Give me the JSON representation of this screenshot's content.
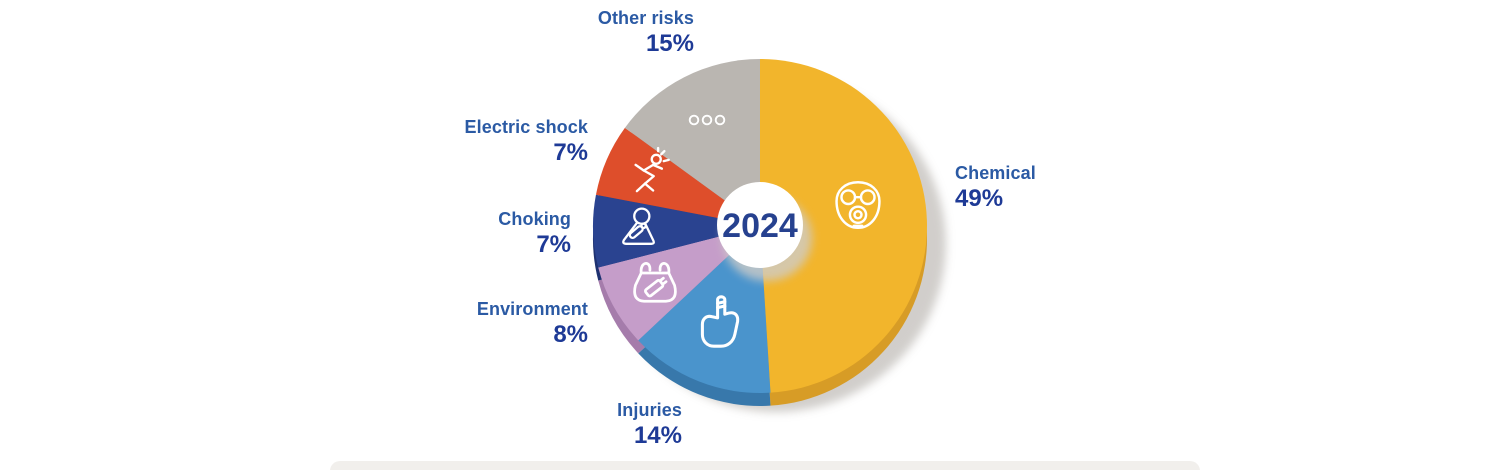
{
  "page": {
    "background": "#ffffff"
  },
  "chart_data": {
    "type": "pie",
    "title": "",
    "center_label": "2024",
    "start_angle_deg": 0,
    "direction": "clockwise",
    "legend_position": "around-slices",
    "slices": [
      {
        "label": "Chemical",
        "value": 49,
        "pct_label": "49%",
        "color": "#F2B52C",
        "depth_color": "#D79C26",
        "icon": "gas-mask-icon"
      },
      {
        "label": "Injuries",
        "value": 14,
        "pct_label": "14%",
        "color": "#4A94CC",
        "depth_color": "#3878AB",
        "icon": "injured-hand-icon"
      },
      {
        "label": "Environment",
        "value": 8,
        "pct_label": "8%",
        "color": "#C59DC9",
        "depth_color": "#A57CAB",
        "icon": "plastic-bag-icon"
      },
      {
        "label": "Choking",
        "value": 7,
        "pct_label": "7%",
        "color": "#2A4390",
        "depth_color": "#1E3170",
        "icon": "choking-icon"
      },
      {
        "label": "Electric shock",
        "value": 7,
        "pct_label": "7%",
        "color": "#DE4E2B",
        "depth_color": "#B23C20",
        "icon": "electric-shock-icon"
      },
      {
        "label": "Other risks",
        "value": 15,
        "pct_label": "15%",
        "color": "#BAB6B1",
        "depth_color": "#9B9792",
        "icon": "ellipsis-icon"
      }
    ],
    "colors": {
      "label_text": "#2B5AA4",
      "pct_text": "#1E3A96",
      "center_text": "#26418F",
      "icon_stroke": "#FFFFFF",
      "shadow": "#C9C6C2"
    }
  }
}
